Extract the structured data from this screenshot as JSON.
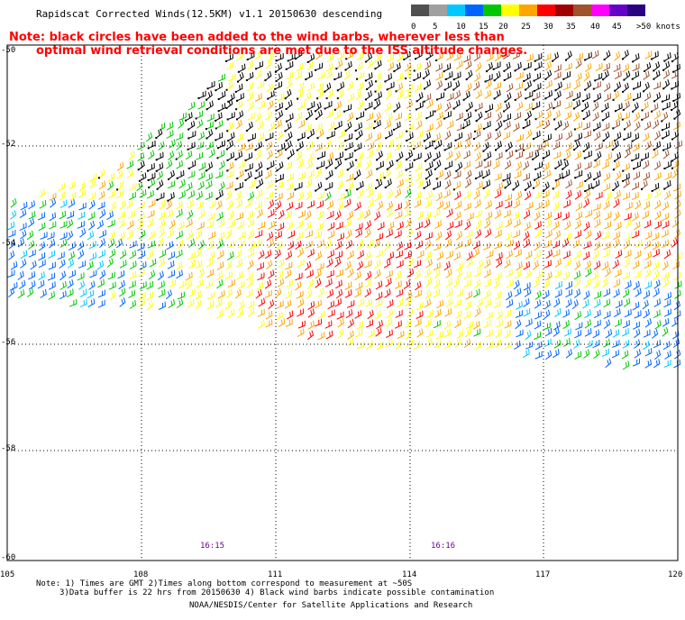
{
  "title": "Rapidscat Corrected Winds(12.5KM) v1.1 20150630 descending",
  "note_line1": "Note: black circles have been added to the wind barbs, wherever less than",
  "note_line2": "optimal wind retrieval conditions are met due to the ISS altitude changes.",
  "colorbar": {
    "labels": [
      "0",
      "5",
      "10",
      "15",
      "20",
      "25",
      "30",
      "35",
      "40",
      "45",
      ">50 knots"
    ],
    "colors": [
      "#505050",
      "#a0a0a0",
      "#00c8ff",
      "#0064ff",
      "#00c800",
      "#ffff00",
      "#ffa500",
      "#ff0000",
      "#a00000",
      "#a0522d",
      "#ff00ff",
      "#6400c8",
      "#2a0080"
    ]
  },
  "lat_labels": [
    "-50",
    "-52",
    "-54",
    "-56",
    "-58",
    "-60"
  ],
  "lon_labels": [
    "105",
    "108",
    "111",
    "114",
    "117",
    "120"
  ],
  "time_labels": [
    "16:15",
    "16:16"
  ],
  "footer": {
    "line1": "Note: 1) Times are GMT 2)Times along bottom correspond to measurement at ~50S",
    "line2": "3)Data buffer is 22 hrs from 20150630 4) Black wind barbs indicate possible contamination",
    "line3": "NOAA/NESDIS/Center for Satellite Applications and Research"
  }
}
